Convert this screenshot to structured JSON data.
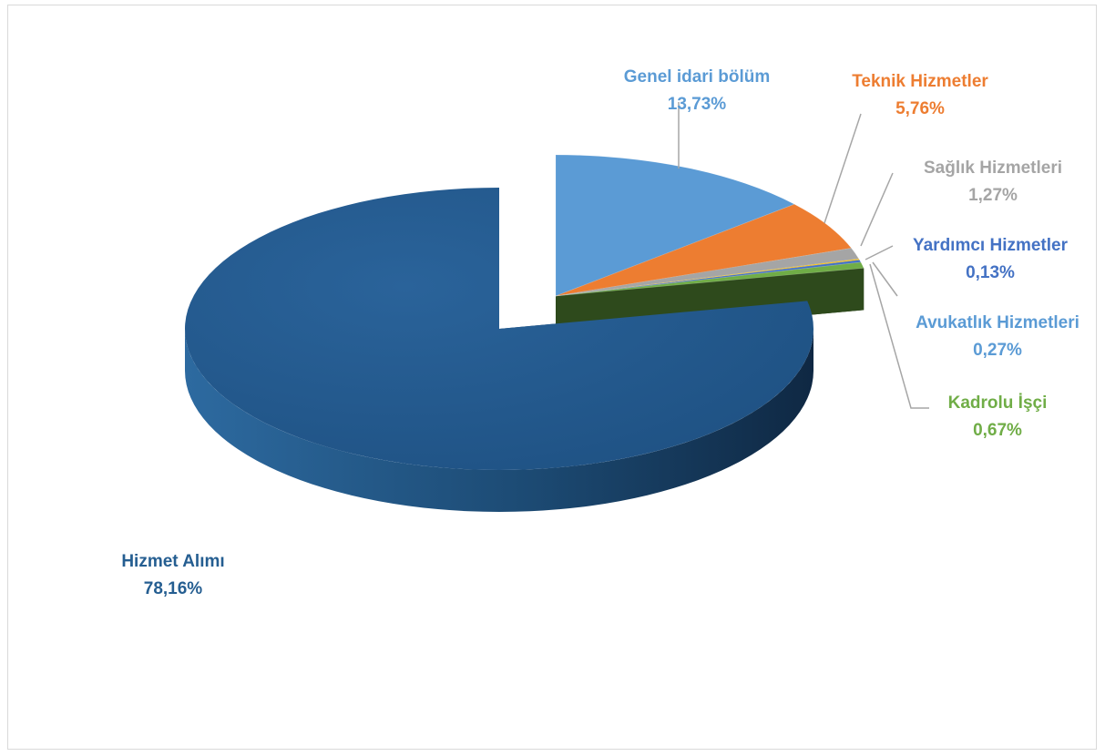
{
  "chart_data": {
    "type": "pie",
    "title": "",
    "slices": [
      {
        "label": "Genel idari bölüm",
        "value": 13.73,
        "value_label": "13,73%",
        "color": "#5b9bd5",
        "label_color": "#5b9bd5"
      },
      {
        "label": "Teknik Hizmetler",
        "value": 5.76,
        "value_label": "5,76%",
        "color": "#ed7d31",
        "label_color": "#ed7d31"
      },
      {
        "label": "Sağlık Hizmetleri",
        "value": 1.27,
        "value_label": "1,27%",
        "color": "#a5a5a5",
        "label_color": "#a5a5a5"
      },
      {
        "label": "Yardımcı Hizmetler",
        "value": 0.13,
        "value_label": "0,13%",
        "color": "#ffc000",
        "label_color": "#4472c4"
      },
      {
        "label": "Avukatlık Hizmetleri",
        "value": 0.27,
        "value_label": "0,27%",
        "color": "#4472c4",
        "label_color": "#5b9bd5"
      },
      {
        "label": "Kadrolu İşçi",
        "value": 0.67,
        "value_label": "0,67%",
        "color": "#70ad47",
        "label_color": "#70ad47"
      },
      {
        "label": "Hizmet Alımı",
        "value": 78.16,
        "value_label": "78,16%",
        "color": "#255e91",
        "label_color": "#255e91"
      }
    ],
    "exploded_slice": "Hizmet Alımı",
    "style": "3d",
    "legend": "none"
  }
}
